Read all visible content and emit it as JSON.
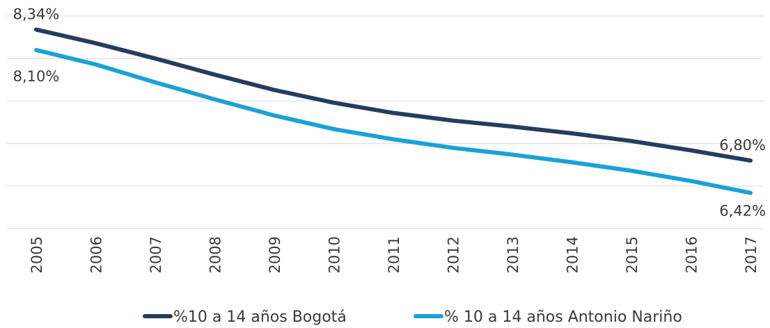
{
  "chart_data": {
    "type": "line",
    "categories": [
      "2005",
      "2006",
      "2007",
      "2008",
      "2009",
      "2010",
      "2011",
      "2012",
      "2013",
      "2014",
      "2015",
      "2016",
      "2017"
    ],
    "series": [
      {
        "name": "%10 a 14 años Bogotá",
        "color": "#253d5e",
        "values": [
          8.34,
          8.18,
          8.0,
          7.81,
          7.63,
          7.48,
          7.36,
          7.27,
          7.2,
          7.12,
          7.03,
          6.92,
          6.8
        ],
        "value_labels": [
          "8,34%",
          null,
          null,
          null,
          null,
          null,
          null,
          null,
          null,
          null,
          null,
          null,
          "6,80%"
        ]
      },
      {
        "name": "% 10 a 14 años Antonio Nariño",
        "color": "#1aa2d8",
        "values": [
          8.1,
          7.93,
          7.72,
          7.52,
          7.33,
          7.17,
          7.05,
          6.95,
          6.87,
          6.78,
          6.68,
          6.56,
          6.42
        ],
        "value_labels": [
          "8,10%",
          null,
          null,
          null,
          null,
          null,
          null,
          null,
          null,
          null,
          null,
          null,
          "6,42%"
        ]
      }
    ],
    "ylim": [
      6,
      8.5
    ],
    "yticks": [
      6,
      6.5,
      7,
      7.5,
      8,
      8.5
    ],
    "grid": true,
    "legend": "bottom"
  }
}
